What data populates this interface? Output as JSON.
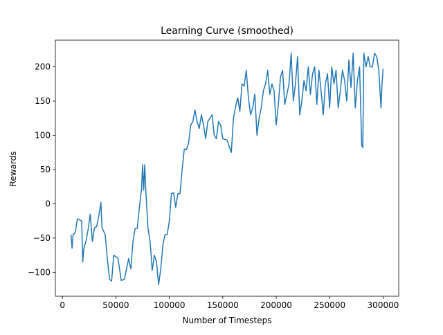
{
  "chart_data": {
    "type": "line",
    "title": "Learning Curve (smoothed)",
    "x_label": "Number of Timesteps",
    "y_label": "Rewards",
    "color": "#1f77b4",
    "x": [
      8000,
      9000,
      10000,
      12000,
      14000,
      18000,
      19000,
      20000,
      22000,
      24000,
      26000,
      28000,
      30000,
      32000,
      34000,
      36000,
      37000,
      40000,
      42000,
      44000,
      46000,
      48000,
      52000,
      55000,
      58000,
      60000,
      62000,
      64000,
      66000,
      68000,
      70000,
      72000,
      74000,
      75000,
      76000,
      77000,
      78000,
      80000,
      82000,
      84000,
      86000,
      88000,
      90000,
      92000,
      94000,
      96000,
      98000,
      100000,
      102000,
      104000,
      106000,
      108000,
      110000,
      112000,
      114000,
      116000,
      118000,
      120000,
      122000,
      124000,
      126000,
      128000,
      130000,
      132000,
      134000,
      136000,
      138000,
      140000,
      142000,
      144000,
      146000,
      148000,
      150000,
      154000,
      158000,
      160000,
      162000,
      164000,
      166000,
      168000,
      170000,
      172000,
      174000,
      176000,
      178000,
      180000,
      182000,
      184000,
      186000,
      188000,
      190000,
      192000,
      194000,
      196000,
      198000,
      200000,
      202000,
      204000,
      206000,
      208000,
      210000,
      212000,
      214000,
      216000,
      218000,
      220000,
      222000,
      224000,
      226000,
      228000,
      230000,
      232000,
      234000,
      236000,
      238000,
      240000,
      242000,
      244000,
      246000,
      248000,
      250000,
      252000,
      254000,
      256000,
      258000,
      260000,
      262000,
      264000,
      266000,
      268000,
      270000,
      272000,
      274000,
      276000,
      278000,
      280000,
      281000,
      282000,
      284000,
      286000,
      288000,
      290000,
      292000,
      294000,
      296000,
      298000,
      299000,
      300000
    ],
    "values": [
      -45,
      -65,
      -45,
      -42,
      -22,
      -25,
      -85,
      -65,
      -55,
      -38,
      -15,
      -55,
      -35,
      -33,
      -18,
      2,
      -35,
      -45,
      -80,
      -110,
      -113,
      -75,
      -80,
      -112,
      -110,
      -95,
      -80,
      -95,
      -55,
      -36,
      -36,
      -5,
      22,
      57,
      20,
      57,
      20,
      -35,
      -55,
      -97,
      -75,
      -85,
      -118,
      -95,
      -60,
      -45,
      -45,
      -25,
      15,
      16,
      -5,
      15,
      15,
      50,
      80,
      79,
      88,
      115,
      120,
      137,
      120,
      110,
      130,
      115,
      95,
      120,
      125,
      130,
      100,
      95,
      120,
      115,
      95,
      93,
      75,
      125,
      142,
      155,
      135,
      175,
      172,
      195,
      155,
      130,
      140,
      160,
      100,
      125,
      140,
      165,
      175,
      195,
      160,
      175,
      165,
      115,
      145,
      185,
      195,
      145,
      160,
      175,
      220,
      150,
      175,
      215,
      130,
      150,
      180,
      165,
      200,
      160,
      190,
      200,
      145,
      195,
      165,
      130,
      175,
      190,
      140,
      200,
      175,
      195,
      140,
      165,
      195,
      180,
      150,
      210,
      170,
      220,
      140,
      180,
      200,
      85,
      82,
      220,
      200,
      215,
      200,
      200,
      220,
      215,
      195,
      140,
      175,
      197
    ],
    "xlim": [
      -6600,
      314600
    ],
    "ylim": [
      -135,
      239
    ],
    "xticks": [
      0,
      50000,
      100000,
      150000,
      200000,
      250000,
      300000
    ],
    "yticks": [
      {
        "value": -100,
        "label": "−100"
      },
      {
        "value": -50,
        "label": "−50"
      },
      0,
      50,
      100,
      150,
      200
    ]
  }
}
